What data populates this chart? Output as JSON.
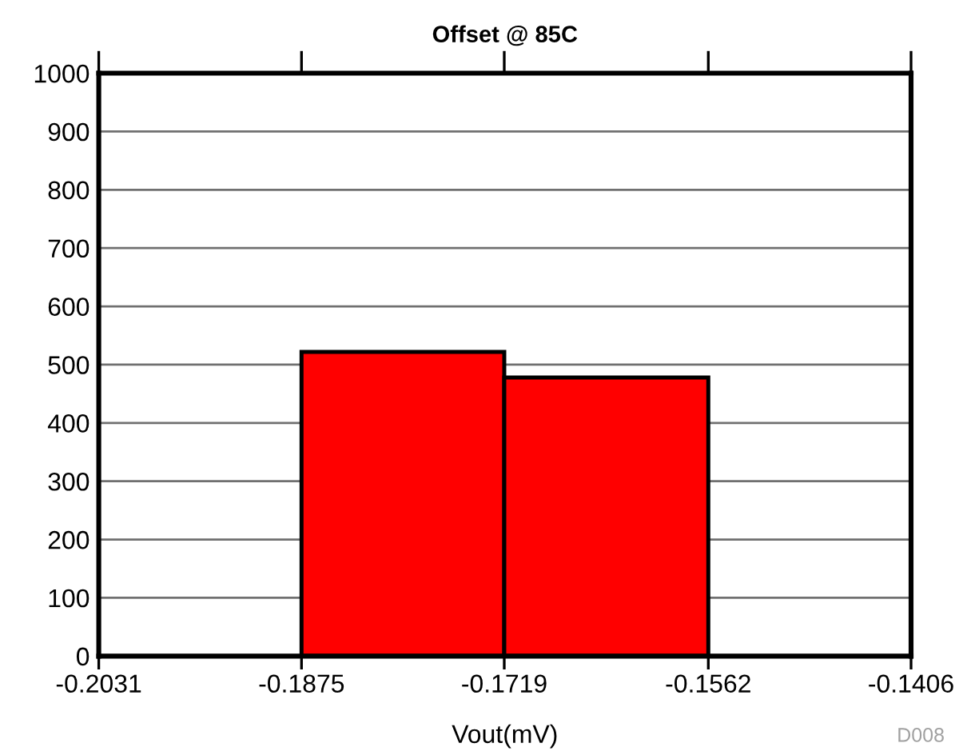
{
  "chart_data": {
    "type": "histogram",
    "title": "Offset @ 85C",
    "xlabel": "Vout(mV)",
    "bins": [
      -0.1875,
      -0.1719,
      -0.1562
    ],
    "values": [
      522,
      478
    ],
    "color": "#ff0000",
    "xlim": [
      -0.2031,
      -0.1406
    ],
    "xticks": [
      -0.2031,
      -0.1875,
      -0.1719,
      -0.1562,
      -0.1406
    ],
    "ylim": [
      0,
      1000
    ],
    "yticks": [
      0,
      100,
      200,
      300,
      400,
      500,
      600,
      700,
      800,
      900,
      1000
    ],
    "grid": "y",
    "annotations": [
      "D008"
    ]
  }
}
